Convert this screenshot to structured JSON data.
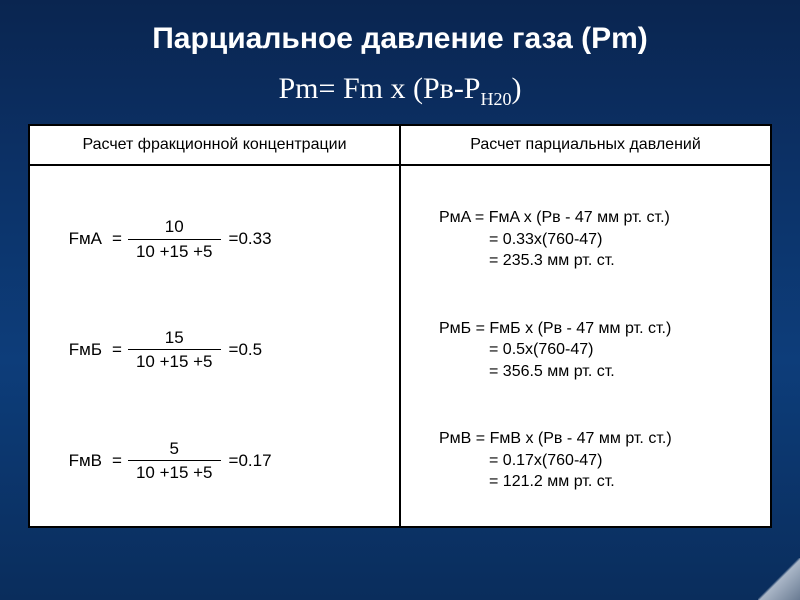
{
  "title": "Парциальное давление газа (Pm)",
  "formula": {
    "lhs": "Pm",
    "rhs_prefix": "Fm х (Рв-Р",
    "subscript": "Н20",
    "rhs_suffix": ")"
  },
  "table": {
    "header_left": "Расчет фракционной концентрации",
    "header_right": "Расчет парциальных давлений",
    "border_color": "#000000",
    "bg_color": "#ffffff",
    "header_fontsize": 16,
    "cell_fontsize": 17
  },
  "fractions": [
    {
      "lhs": "FмА",
      "num": "10",
      "den": "10 +15 +5",
      "result": "=0.33"
    },
    {
      "lhs": "FмБ",
      "num": "15",
      "den": "10 +15 +5",
      "result": "=0.5"
    },
    {
      "lhs": "FмВ",
      "num": "5",
      "den": "10 +15 +5",
      "result": "=0.17"
    }
  ],
  "calcs": [
    {
      "line1": "PмA = FмA x (Pв - 47 мм рт. ст.)",
      "line2": "= 0.33x(760-47)",
      "line3": "= 235.3 мм рт. ст."
    },
    {
      "line1": "PмБ = FмБ x (Pв - 47 мм рт. ст.)",
      "line2": "= 0.5x(760-47)",
      "line3": "= 356.5 мм рт. ст."
    },
    {
      "line1": "PмВ = FмВ x (Pв - 47 мм рт. ст.)",
      "line2": "= 0.17x(760-47)",
      "line3": "= 121.2 мм рт. ст."
    }
  ],
  "colors": {
    "bg_gradient_top": "#0a2550",
    "bg_gradient_mid": "#0d3d7a",
    "text_on_dark": "#ffffff",
    "text_on_light": "#000000"
  }
}
